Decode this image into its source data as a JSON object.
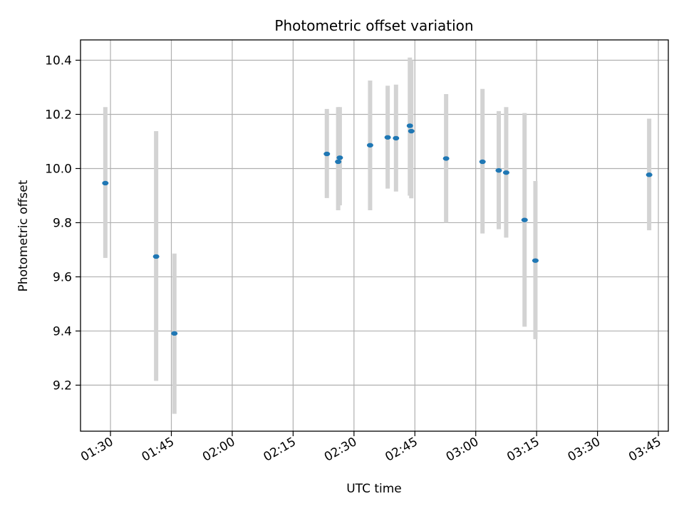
{
  "chart_data": {
    "type": "scatter",
    "title": "Photometric offset variation",
    "xlabel": "UTC time",
    "ylabel": "Photometric offset",
    "grid": true,
    "x_ticks": [
      "01:30",
      "01:45",
      "02:00",
      "02:15",
      "02:30",
      "02:45",
      "03:00",
      "03:15",
      "03:30",
      "03:45"
    ],
    "y_ticks": [
      "9.2",
      "9.4",
      "9.6",
      "9.8",
      "10.0",
      "10.2",
      "10.4"
    ],
    "x_range": [
      "01:22:37",
      "03:47:27"
    ],
    "y_range": [
      9.03,
      10.475
    ],
    "colors": {
      "point": "#1f77b4",
      "errorbar": "#d3d3d3",
      "grid": "#b0b0b0"
    },
    "points": [
      {
        "time": "01:28:44",
        "y": 9.946,
        "ymin": 9.67,
        "ymax": 10.227
      },
      {
        "time": "01:41:15",
        "y": 9.675,
        "ymin": 9.216,
        "ymax": 10.138
      },
      {
        "time": "01:45:45",
        "y": 9.391,
        "ymin": 9.094,
        "ymax": 9.686
      },
      {
        "time": "02:23:19",
        "y": 10.054,
        "ymin": 9.891,
        "ymax": 10.22
      },
      {
        "time": "02:26:06",
        "y": 10.025,
        "ymin": 9.846,
        "ymax": 10.227
      },
      {
        "time": "02:26:30",
        "y": 10.04,
        "ymin": 9.864,
        "ymax": 10.227
      },
      {
        "time": "02:33:58",
        "y": 10.086,
        "ymin": 9.846,
        "ymax": 10.325
      },
      {
        "time": "02:38:18",
        "y": 10.115,
        "ymin": 9.926,
        "ymax": 10.306
      },
      {
        "time": "02:40:21",
        "y": 10.112,
        "ymin": 9.915,
        "ymax": 10.31
      },
      {
        "time": "02:43:46",
        "y": 10.158,
        "ymin": 9.9,
        "ymax": 10.41
      },
      {
        "time": "02:44:07",
        "y": 10.138,
        "ymin": 9.89,
        "ymax": 10.4
      },
      {
        "time": "02:52:42",
        "y": 10.037,
        "ymin": 9.8,
        "ymax": 10.275
      },
      {
        "time": "03:01:40",
        "y": 10.025,
        "ymin": 9.76,
        "ymax": 10.294
      },
      {
        "time": "03:05:40",
        "y": 9.993,
        "ymin": 9.776,
        "ymax": 10.212
      },
      {
        "time": "03:07:30",
        "y": 9.985,
        "ymin": 9.745,
        "ymax": 10.227
      },
      {
        "time": "03:12:02",
        "y": 9.81,
        "ymin": 9.416,
        "ymax": 10.205
      },
      {
        "time": "03:14:42",
        "y": 9.66,
        "ymin": 9.37,
        "ymax": 9.954
      },
      {
        "time": "03:42:44",
        "y": 9.977,
        "ymin": 9.772,
        "ymax": 10.184
      }
    ]
  }
}
